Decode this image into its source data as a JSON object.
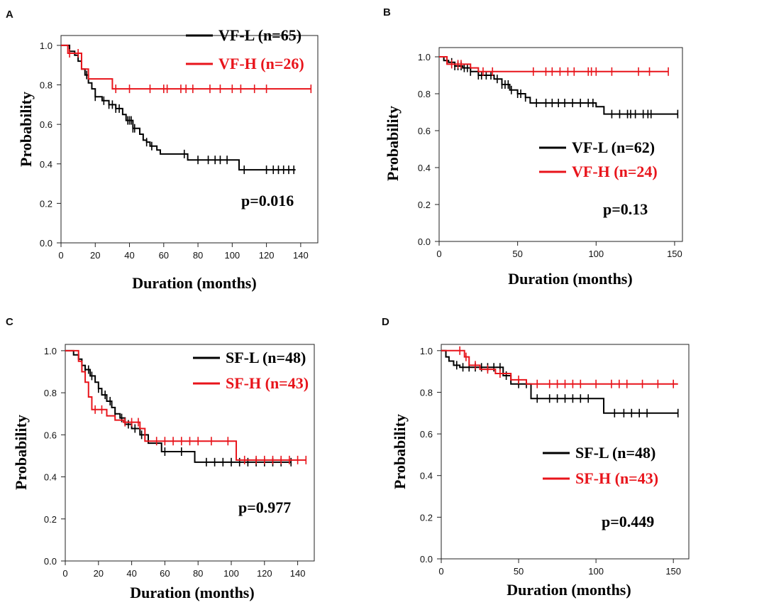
{
  "chart_data": [
    {
      "type": "line",
      "panel_label": "A",
      "xlabel": "Duration (months)",
      "ylabel": "Probability",
      "xlim": [
        0,
        150
      ],
      "ylim": [
        0,
        1.05
      ],
      "xticks": [
        "0",
        "20",
        "40",
        "60",
        "80",
        "100",
        "120",
        "140"
      ],
      "yticks": [
        "0.0",
        "0.2",
        "0.4",
        "0.6",
        "0.8",
        "1.0"
      ],
      "p_value": "p=0.016",
      "legend_position": "top-right",
      "series": [
        {
          "name": "VF-L (n=65)",
          "color": "#000000",
          "x": [
            0,
            5,
            8,
            10,
            12,
            14,
            16,
            18,
            20,
            24,
            28,
            32,
            36,
            38,
            42,
            46,
            48,
            50,
            52,
            56,
            58,
            66,
            74,
            100,
            104,
            137
          ],
          "y": [
            1.0,
            0.97,
            0.95,
            0.92,
            0.88,
            0.85,
            0.81,
            0.78,
            0.74,
            0.72,
            0.7,
            0.68,
            0.65,
            0.62,
            0.58,
            0.55,
            0.52,
            0.51,
            0.49,
            0.47,
            0.45,
            0.45,
            0.42,
            0.42,
            0.37,
            0.37
          ],
          "censored": [
            15,
            20,
            25,
            28,
            30,
            32,
            34,
            39,
            40,
            41,
            42,
            43,
            50,
            53,
            72,
            80,
            86,
            90,
            93,
            97,
            107,
            120,
            124,
            127,
            130,
            133,
            136
          ]
        },
        {
          "name": "VF-H  (n=26)",
          "color": "#e8141b",
          "x": [
            0,
            4,
            12,
            16,
            25,
            30,
            146
          ],
          "y": [
            1.0,
            0.96,
            0.88,
            0.83,
            0.83,
            0.78,
            0.78
          ],
          "censored": [
            5,
            10,
            32,
            40,
            52,
            60,
            62,
            70,
            73,
            77,
            87,
            93,
            100,
            105,
            113,
            120,
            146
          ]
        }
      ]
    },
    {
      "type": "line",
      "panel_label": "B",
      "xlabel": "Duration (months)",
      "ylabel": "Probability",
      "xlim": [
        0,
        155
      ],
      "ylim": [
        0,
        1.05
      ],
      "xticks": [
        "0",
        "50",
        "100",
        "150"
      ],
      "yticks": [
        "0.0",
        "0.2",
        "0.4",
        "0.6",
        "0.8",
        "1.0"
      ],
      "p_value": "p=0.13",
      "legend_position": "center-right",
      "series": [
        {
          "name": "VF-L (n=62)",
          "color": "#000000",
          "x": [
            0,
            3,
            6,
            10,
            15,
            20,
            25,
            35,
            40,
            45,
            50,
            55,
            58,
            100,
            105,
            152
          ],
          "y": [
            1.0,
            0.98,
            0.97,
            0.95,
            0.94,
            0.92,
            0.9,
            0.88,
            0.85,
            0.82,
            0.8,
            0.78,
            0.75,
            0.73,
            0.69,
            0.69
          ],
          "censored": [
            8,
            10,
            12,
            14,
            16,
            18,
            20,
            25,
            27,
            30,
            33,
            37,
            40,
            42,
            44,
            46,
            50,
            52,
            55,
            62,
            68,
            72,
            76,
            80,
            85,
            90,
            95,
            98,
            110,
            115,
            120,
            122,
            125,
            130,
            133,
            135,
            152
          ]
        },
        {
          "name": "VF-H  (n=24)",
          "color": "#e8141b",
          "x": [
            0,
            5,
            20,
            25,
            146
          ],
          "y": [
            1.0,
            0.96,
            0.94,
            0.92,
            0.92
          ],
          "censored": [
            8,
            12,
            14,
            28,
            34,
            60,
            68,
            72,
            77,
            82,
            86,
            95,
            97,
            100,
            110,
            127,
            134,
            146
          ]
        }
      ]
    },
    {
      "type": "line",
      "panel_label": "C",
      "xlabel": "Duration (months)",
      "ylabel": "Probability",
      "xlim": [
        0,
        150
      ],
      "ylim": [
        0,
        1.03
      ],
      "xticks": [
        "0",
        "20",
        "40",
        "60",
        "80",
        "100",
        "120",
        "140"
      ],
      "yticks": [
        "0.0",
        "0.2",
        "0.4",
        "0.6",
        "0.8",
        "1.0"
      ],
      "p_value": "p=0.977",
      "legend_position": "top-right",
      "series": [
        {
          "name": "SF-L (n=48)",
          "color": "#000000",
          "x": [
            0,
            5,
            8,
            10,
            12,
            15,
            18,
            20,
            22,
            25,
            28,
            30,
            33,
            36,
            40,
            45,
            50,
            58,
            62,
            78,
            136
          ],
          "y": [
            1.0,
            0.98,
            0.96,
            0.93,
            0.91,
            0.88,
            0.85,
            0.82,
            0.79,
            0.76,
            0.73,
            0.7,
            0.68,
            0.65,
            0.63,
            0.6,
            0.56,
            0.52,
            0.52,
            0.47,
            0.47
          ],
          "censored": [
            10,
            12,
            14,
            16,
            20,
            24,
            27,
            30,
            34,
            38,
            42,
            46,
            60,
            70,
            85,
            90,
            95,
            100,
            105,
            110,
            115,
            120,
            125,
            130,
            136
          ]
        },
        {
          "name": "SF-H (n=43)",
          "color": "#e8141b",
          "x": [
            0,
            8,
            10,
            12,
            14,
            16,
            25,
            30,
            35,
            40,
            45,
            48,
            103,
            145
          ],
          "y": [
            1.0,
            0.95,
            0.9,
            0.85,
            0.78,
            0.72,
            0.69,
            0.67,
            0.66,
            0.66,
            0.63,
            0.57,
            0.48,
            0.48
          ],
          "censored": [
            18,
            22,
            36,
            40,
            44,
            55,
            60,
            65,
            70,
            75,
            80,
            88,
            98,
            108,
            115,
            120,
            125,
            130,
            135,
            140,
            145
          ]
        }
      ]
    },
    {
      "type": "line",
      "panel_label": "D",
      "xlabel": "Duration (months)",
      "ylabel": "Probability",
      "xlim": [
        0,
        160
      ],
      "ylim": [
        0,
        1.03
      ],
      "xticks": [
        "0",
        "50",
        "100",
        "150"
      ],
      "yticks": [
        "0.0",
        "0.2",
        "0.4",
        "0.6",
        "0.8",
        "1.0"
      ],
      "p_value": "p=0.449",
      "legend_position": "center-right",
      "series": [
        {
          "name": "SF-L (n=48)",
          "color": "#000000",
          "x": [
            0,
            3,
            5,
            8,
            12,
            40,
            45,
            58,
            105,
            153
          ],
          "y": [
            1.0,
            0.97,
            0.95,
            0.93,
            0.92,
            0.88,
            0.84,
            0.77,
            0.7,
            0.7
          ],
          "censored": [
            10,
            14,
            18,
            22,
            26,
            30,
            34,
            38,
            42,
            50,
            55,
            62,
            70,
            75,
            80,
            85,
            90,
            95,
            112,
            118,
            123,
            128,
            133,
            153
          ]
        },
        {
          "name": "SF-H (n=43)",
          "color": "#e8141b",
          "x": [
            0,
            15,
            18,
            25,
            35,
            45,
            55,
            60,
            153
          ],
          "y": [
            1.0,
            0.97,
            0.93,
            0.91,
            0.89,
            0.86,
            0.84,
            0.84,
            0.84
          ],
          "censored": [
            12,
            16,
            22,
            30,
            38,
            50,
            62,
            70,
            75,
            80,
            85,
            90,
            100,
            110,
            115,
            120,
            130,
            140,
            150
          ]
        }
      ]
    }
  ]
}
